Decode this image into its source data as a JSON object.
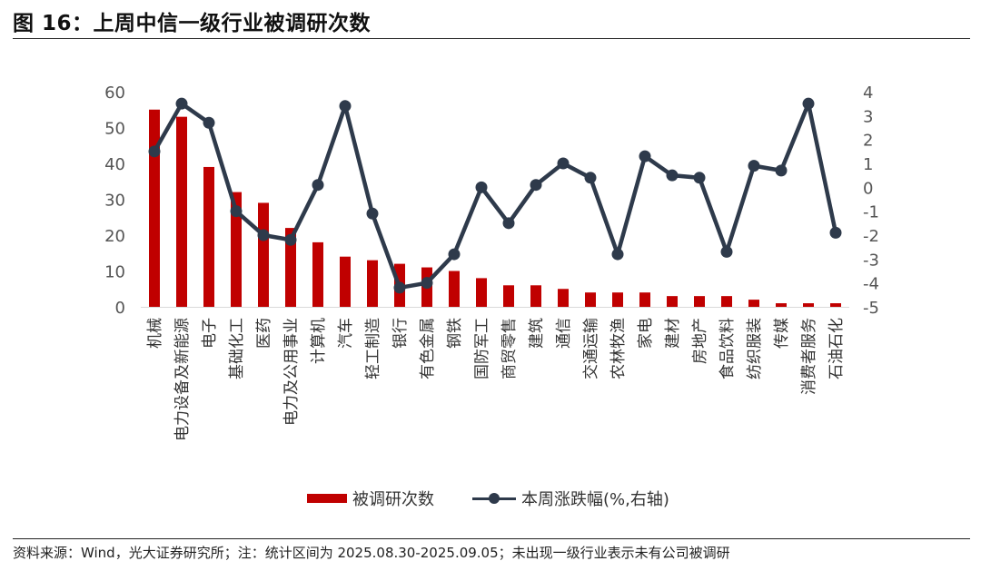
{
  "header": {
    "title": "图 16：上周中信一级行业被调研次数"
  },
  "footer": {
    "source": "资料来源：Wind，光大证券研究所；注：统计区间为 2025.08.30-2025.09.05；未出现一级行业表示未有公司被调研"
  },
  "colors": {
    "bar": "#C00000",
    "line": "#2E3A4B"
  },
  "chart_data": {
    "type": "bar",
    "categories": [
      "机械",
      "电力设备及新能源",
      "电子",
      "基础化工",
      "医药",
      "电力及公用事业",
      "计算机",
      "汽车",
      "轻工制造",
      "银行",
      "有色金属",
      "钢铁",
      "国防军工",
      "商贸零售",
      "建筑",
      "通信",
      "交通运输",
      "农林牧渔",
      "家电",
      "建材",
      "房地产",
      "食品饮料",
      "纺织服装",
      "传媒",
      "消费者服务",
      "石油石化"
    ],
    "series": [
      {
        "name": "被调研次数",
        "type": "bar",
        "axis": "left",
        "values": [
          55,
          53,
          39,
          32,
          29,
          22,
          18,
          14,
          13,
          12,
          11,
          10,
          8,
          6,
          6,
          5,
          4,
          4,
          4,
          3,
          3,
          3,
          2,
          1,
          1,
          1
        ]
      },
      {
        "name": "本周涨跌幅(%,右轴)",
        "type": "line",
        "axis": "right",
        "values": [
          1.5,
          3.5,
          2.7,
          -1.0,
          -2.0,
          -2.2,
          0.1,
          3.4,
          -1.1,
          -4.2,
          -4.0,
          -2.8,
          0.0,
          -1.5,
          0.1,
          1.0,
          0.4,
          -2.8,
          1.3,
          0.5,
          0.4,
          -2.7,
          0.9,
          0.7,
          3.5,
          -1.9
        ]
      }
    ],
    "left_axis": {
      "ylim": [
        0,
        60
      ],
      "ticks": [
        0,
        10,
        20,
        30,
        40,
        50,
        60
      ]
    },
    "right_axis": {
      "ylim": [
        -5,
        4
      ],
      "ticks": [
        4,
        3,
        2,
        1,
        0,
        -1,
        -2,
        -3,
        -4,
        -5
      ]
    },
    "legend": {
      "placement": "bottom",
      "items": [
        "被调研次数",
        "本周涨跌幅(%,右轴)"
      ]
    }
  }
}
